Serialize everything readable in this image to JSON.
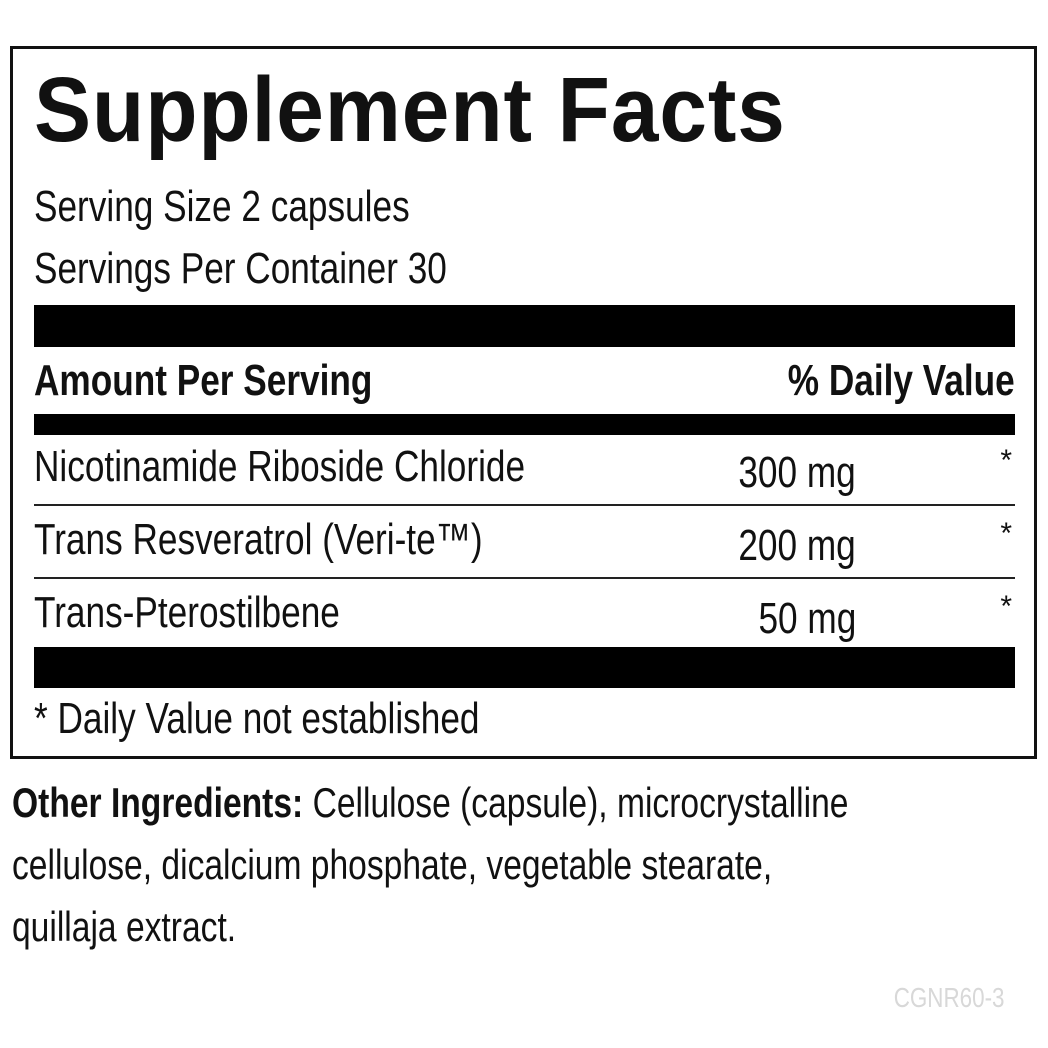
{
  "title": "Supplement Facts",
  "serving_size": "Serving Size 2 capsules",
  "servings_per_container": "Servings Per Container 30",
  "header": {
    "amount": "Amount Per Serving",
    "daily_value": "% Daily Value"
  },
  "ingredients": [
    {
      "name": "Nicotinamide Riboside Chloride",
      "amount": "300 mg",
      "dv": "*"
    },
    {
      "name": "Trans Resveratrol (Veri-te™)",
      "amount": "200 mg",
      "dv": "*"
    },
    {
      "name": "Trans-Pterostilbene",
      "amount": "50 mg",
      "dv": "*"
    }
  ],
  "footnote": "* Daily Value not established",
  "other_ingredients": {
    "label": "Other Ingredients:",
    "lines": [
      " Cellulose (capsule), microcrystalline",
      "cellulose, dicalcium phosphate, vegetable stearate,",
      "quillaja extract."
    ]
  },
  "code": "CGNR60-3"
}
